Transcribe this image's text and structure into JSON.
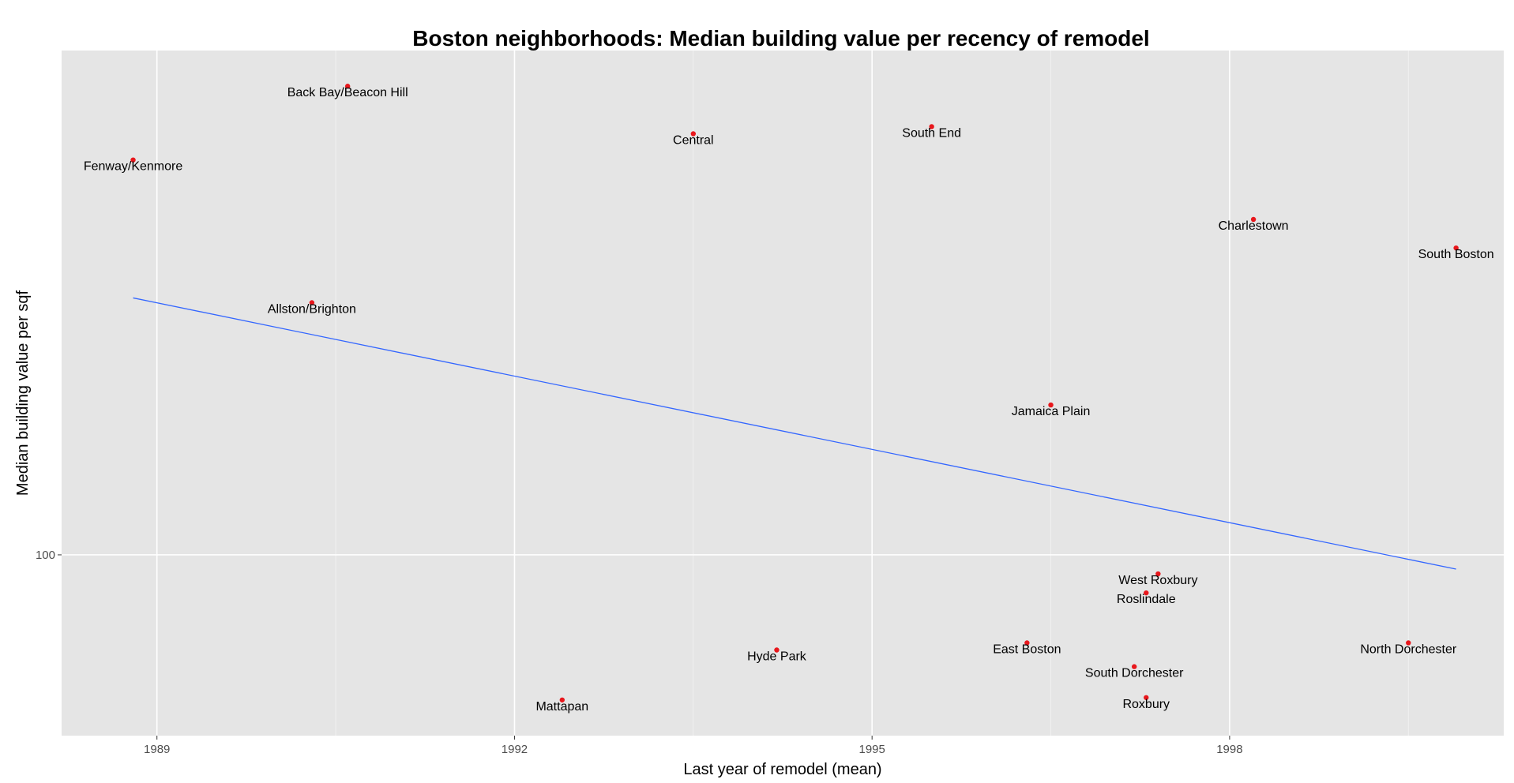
{
  "chart_data": {
    "type": "scatter",
    "title": "Boston neighborhoods: Median building value per recency of remodel",
    "xlabel": "Last year of remodel (mean)",
    "ylabel": "Median building value per sqf",
    "xlim": [
      1988.2,
      2000.3
    ],
    "ylim": [
      92.4,
      121.2
    ],
    "x_ticks": [
      1989,
      1992,
      1995,
      1998
    ],
    "x_tick_labels": [
      "1989",
      "1992",
      "1995",
      "1998"
    ],
    "y_ticks": [
      100
    ],
    "y_tick_labels": [
      "100"
    ],
    "panel_background": "#e5e5e5",
    "grid_color": "#ffffff",
    "grid": true,
    "point_color": "#e8171c",
    "trend_line_color": "#3366ff",
    "points": [
      {
        "label": "Back Bay/Beacon Hill",
        "x": 1990.6,
        "y": 119.7
      },
      {
        "label": "Fenway/Kenmore",
        "x": 1988.8,
        "y": 116.6
      },
      {
        "label": "Central",
        "x": 1993.5,
        "y": 117.7
      },
      {
        "label": "South End",
        "x": 1995.5,
        "y": 118.0
      },
      {
        "label": "Charlestown",
        "x": 1998.2,
        "y": 114.1
      },
      {
        "label": "South Boston",
        "x": 1999.9,
        "y": 112.9
      },
      {
        "label": "Allston/Brighton",
        "x": 1990.3,
        "y": 110.6
      },
      {
        "label": "Jamaica Plain",
        "x": 1996.5,
        "y": 106.3
      },
      {
        "label": "West Roxbury",
        "x": 1997.4,
        "y": 99.2
      },
      {
        "label": "Roslindale",
        "x": 1997.3,
        "y": 98.4
      },
      {
        "label": "North Dorchester",
        "x": 1999.5,
        "y": 96.3
      },
      {
        "label": "East Boston",
        "x": 1996.3,
        "y": 96.3
      },
      {
        "label": "Hyde Park",
        "x": 1994.2,
        "y": 96.0
      },
      {
        "label": "South Dorchester",
        "x": 1997.2,
        "y": 95.3
      },
      {
        "label": "Roxbury",
        "x": 1997.3,
        "y": 94.0
      },
      {
        "label": "Mattapan",
        "x": 1992.4,
        "y": 93.9
      }
    ],
    "trend_line": {
      "x": [
        1988.8,
        1999.9
      ],
      "y": [
        110.8,
        99.4
      ]
    }
  }
}
